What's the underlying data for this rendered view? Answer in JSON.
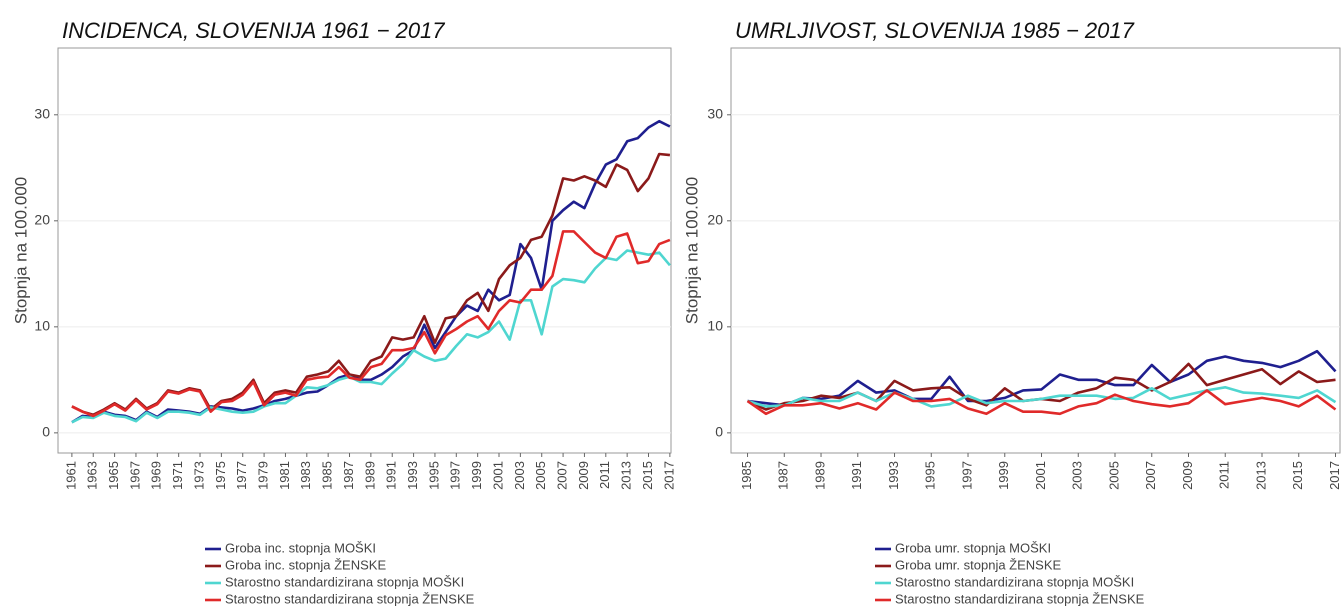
{
  "chart_data": [
    {
      "type": "line",
      "title": "INCIDENCA, SLOVENIJA 1961 − 2017",
      "y_label": "Stopnja na 100.000",
      "x": [
        1961,
        1962,
        1963,
        1964,
        1965,
        1966,
        1967,
        1968,
        1969,
        1970,
        1971,
        1972,
        1973,
        1974,
        1975,
        1976,
        1977,
        1978,
        1979,
        1980,
        1981,
        1982,
        1983,
        1984,
        1985,
        1986,
        1987,
        1988,
        1989,
        1990,
        1991,
        1992,
        1993,
        1994,
        1995,
        1996,
        1997,
        1998,
        1999,
        2000,
        2001,
        2002,
        2003,
        2004,
        2005,
        2006,
        2007,
        2008,
        2009,
        2010,
        2011,
        2012,
        2013,
        2014,
        2015,
        2016,
        2017
      ],
      "xlim": [
        1959.7,
        2017.2
      ],
      "xticks": [
        1961,
        1963,
        1965,
        1967,
        1969,
        1971,
        1973,
        1975,
        1977,
        1979,
        1981,
        1983,
        1985,
        1987,
        1989,
        1991,
        1993,
        1995,
        1997,
        1999,
        2001,
        2003,
        2005,
        2007,
        2009,
        2011,
        2013,
        2015,
        2017
      ],
      "ylim": [
        -1.9,
        36.3
      ],
      "yticks": [
        0,
        10,
        20,
        30
      ],
      "grid": true,
      "legend": "bottom",
      "series": [
        {
          "name": "Groba inc. stopnja MOŠKI",
          "color": "#1f1f8f",
          "values": [
            1.0,
            1.6,
            1.5,
            2.0,
            1.7,
            1.6,
            1.2,
            2.0,
            1.5,
            2.2,
            2.1,
            2.0,
            1.8,
            2.5,
            2.4,
            2.3,
            2.1,
            2.3,
            2.6,
            3.0,
            3.2,
            3.5,
            3.8,
            3.9,
            4.5,
            5.2,
            5.5,
            5.0,
            5.0,
            5.5,
            6.2,
            7.2,
            7.8,
            10.2,
            8.0,
            9.5,
            11.0,
            12.0,
            11.5,
            13.5,
            12.5,
            13.0,
            17.8,
            16.5,
            13.5,
            20.0,
            21.0,
            21.8,
            21.2,
            23.5,
            25.3,
            25.8,
            27.5,
            27.8,
            28.8,
            29.4,
            28.9
          ]
        },
        {
          "name": "Groba inc. stopnja ŽENSKE",
          "color": "#8b1a1a",
          "values": [
            2.5,
            2.0,
            1.7,
            2.2,
            2.8,
            2.2,
            3.2,
            2.3,
            2.8,
            4.0,
            3.8,
            4.2,
            4.0,
            2.2,
            3.0,
            3.2,
            3.8,
            5.0,
            2.8,
            3.8,
            4.0,
            3.8,
            5.3,
            5.5,
            5.8,
            6.8,
            5.5,
            5.3,
            6.8,
            7.2,
            9.0,
            8.8,
            9.0,
            11.0,
            8.5,
            10.8,
            11.0,
            12.5,
            13.2,
            11.5,
            14.5,
            15.8,
            16.5,
            18.2,
            18.5,
            20.5,
            24.0,
            23.8,
            24.2,
            23.8,
            23.2,
            25.3,
            24.8,
            22.8,
            24.0,
            26.3,
            26.2
          ]
        },
        {
          "name": "Starostno standardizirana stopnja MOŠKI",
          "color": "#4fd6d0",
          "values": [
            1.0,
            1.5,
            1.4,
            1.9,
            1.6,
            1.5,
            1.1,
            1.9,
            1.4,
            2.0,
            2.0,
            1.9,
            1.7,
            2.4,
            2.2,
            2.0,
            1.9,
            2.0,
            2.5,
            2.8,
            2.8,
            3.5,
            4.3,
            4.2,
            4.5,
            5.0,
            5.3,
            4.8,
            4.8,
            4.6,
            5.6,
            6.5,
            7.8,
            7.2,
            6.8,
            7.0,
            8.2,
            9.3,
            9.0,
            9.5,
            10.5,
            8.8,
            12.5,
            12.5,
            9.3,
            13.8,
            14.5,
            14.4,
            14.2,
            15.5,
            16.5,
            16.3,
            17.2,
            17.0,
            16.8,
            17.0,
            15.8
          ]
        },
        {
          "name": "Starostno standardizirana stopnja ŽENSKE",
          "color": "#e02a2a",
          "values": [
            2.5,
            2.0,
            1.6,
            2.1,
            2.7,
            2.1,
            3.1,
            2.2,
            2.7,
            3.9,
            3.7,
            4.1,
            3.9,
            2.0,
            2.9,
            3.0,
            3.6,
            4.8,
            2.6,
            3.6,
            3.8,
            3.5,
            5.0,
            5.2,
            5.3,
            6.2,
            5.2,
            5.0,
            6.2,
            6.5,
            7.8,
            7.8,
            8.0,
            9.5,
            7.5,
            9.2,
            9.8,
            10.5,
            11.0,
            9.8,
            11.5,
            12.5,
            12.3,
            13.5,
            13.5,
            14.8,
            19.0,
            19.0,
            18.0,
            17.0,
            16.5,
            18.5,
            18.8,
            16.0,
            16.2,
            17.8,
            18.2
          ]
        }
      ]
    },
    {
      "type": "line",
      "title": "UMRLJIVOST, SLOVENIJA 1985 − 2017",
      "y_label": "Stopnja na 100.000",
      "x": [
        1985,
        1986,
        1987,
        1988,
        1989,
        1990,
        1991,
        1992,
        1993,
        1994,
        1995,
        1996,
        1997,
        1998,
        1999,
        2000,
        2001,
        2002,
        2003,
        2004,
        2005,
        2006,
        2007,
        2008,
        2009,
        2010,
        2011,
        2012,
        2013,
        2014,
        2015,
        2016,
        2017
      ],
      "xlim": [
        1984.1,
        2017.3
      ],
      "xticks": [
        1985,
        1987,
        1989,
        1991,
        1993,
        1995,
        1997,
        1999,
        2001,
        2003,
        2005,
        2007,
        2009,
        2011,
        2013,
        2015,
        2017
      ],
      "ylim": [
        -1.9,
        36.3
      ],
      "yticks": [
        0,
        10,
        20,
        30
      ],
      "grid": true,
      "legend": "bottom",
      "series": [
        {
          "name": "Groba umr. stopnja MOŠKI",
          "color": "#1f1f8f",
          "values": [
            3.0,
            2.8,
            2.6,
            3.3,
            3.2,
            3.5,
            4.9,
            3.8,
            4.0,
            3.2,
            3.2,
            5.3,
            3.0,
            3.0,
            3.3,
            4.0,
            4.1,
            5.5,
            5.0,
            5.0,
            4.5,
            4.5,
            6.4,
            4.8,
            5.5,
            6.8,
            7.2,
            6.8,
            6.6,
            6.2,
            6.8,
            7.7,
            5.8
          ]
        },
        {
          "name": "Groba umr. stopnja ŽENSKE",
          "color": "#8b1a1a",
          "values": [
            3.0,
            2.2,
            2.8,
            3.0,
            3.5,
            3.3,
            3.8,
            3.0,
            4.9,
            4.0,
            4.2,
            4.3,
            3.2,
            2.6,
            4.2,
            3.0,
            3.2,
            3.0,
            3.8,
            4.2,
            5.2,
            5.0,
            4.0,
            4.8,
            6.5,
            4.5,
            5.0,
            5.5,
            6.0,
            4.6,
            5.8,
            4.8,
            5.0
          ]
        },
        {
          "name": "Starostno standardizirana stopnja MOŠKI",
          "color": "#4fd6d0",
          "values": [
            3.0,
            2.5,
            2.6,
            3.3,
            3.0,
            3.0,
            3.8,
            3.0,
            3.8,
            3.2,
            2.5,
            2.7,
            3.5,
            2.8,
            3.0,
            3.0,
            3.2,
            3.5,
            3.5,
            3.5,
            3.2,
            3.3,
            4.2,
            3.2,
            3.6,
            4.0,
            4.3,
            3.8,
            3.7,
            3.5,
            3.3,
            4.0,
            2.9
          ]
        },
        {
          "name": "Starostno standardizirana stopnja ŽENSKE",
          "color": "#e02a2a",
          "values": [
            3.0,
            1.8,
            2.6,
            2.6,
            2.8,
            2.3,
            2.8,
            2.2,
            3.8,
            3.0,
            3.0,
            3.2,
            2.3,
            1.8,
            2.8,
            2.0,
            2.0,
            1.8,
            2.5,
            2.8,
            3.6,
            3.0,
            2.7,
            2.5,
            2.8,
            4.0,
            2.7,
            3.0,
            3.3,
            3.0,
            2.5,
            3.5,
            2.2
          ]
        }
      ]
    }
  ]
}
